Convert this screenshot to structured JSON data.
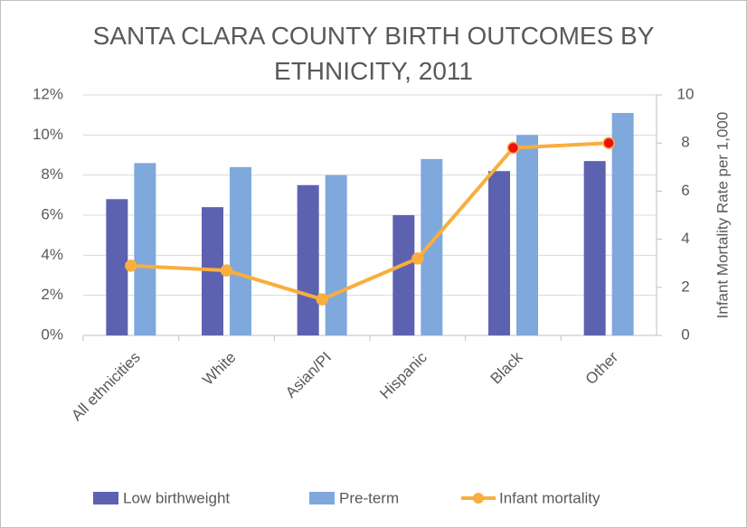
{
  "chart_data": {
    "type": "bar_line",
    "title": "SANTA CLARA COUNTY BIRTH OUTCOMES BY ETHNICITY, 2011",
    "y2_label": "Infant Mortality Rate per 1,000",
    "categories": [
      "All ethnicities",
      "White",
      "Asian/PI",
      "Hispanic",
      "Black",
      "Other"
    ],
    "series": [
      {
        "name": "Low birthweight",
        "type": "bar",
        "color": "#5c62b0",
        "values": [
          6.8,
          6.4,
          7.5,
          6.0,
          8.2,
          8.7
        ]
      },
      {
        "name": "Pre-term",
        "type": "bar",
        "color": "#7fa8dc",
        "values": [
          8.6,
          8.4,
          8.0,
          8.8,
          10.0,
          11.1
        ]
      },
      {
        "name": "Infant mortality",
        "type": "line",
        "axis": "y2",
        "color": "#f9ae3d",
        "marker_colors": [
          "#f9ae3d",
          "#f9ae3d",
          "#f9ae3d",
          "#f9ae3d",
          "#ee1111",
          "#ee1111"
        ],
        "values": [
          2.9,
          2.7,
          1.5,
          3.2,
          7.8,
          8.0
        ]
      }
    ],
    "ylim": [
      0,
      12
    ],
    "yticks": [
      {
        "value": 0,
        "label": "0%"
      },
      {
        "value": 2,
        "label": "2%"
      },
      {
        "value": 4,
        "label": "4%"
      },
      {
        "value": 6,
        "label": "6%"
      },
      {
        "value": 8,
        "label": "8%"
      },
      {
        "value": 10,
        "label": "10%"
      },
      {
        "value": 12,
        "label": "12%"
      }
    ],
    "y2lim": [
      0,
      10
    ],
    "y2ticks": [
      0,
      2,
      4,
      6,
      8,
      10
    ],
    "grid": true,
    "legend": "bottom"
  }
}
